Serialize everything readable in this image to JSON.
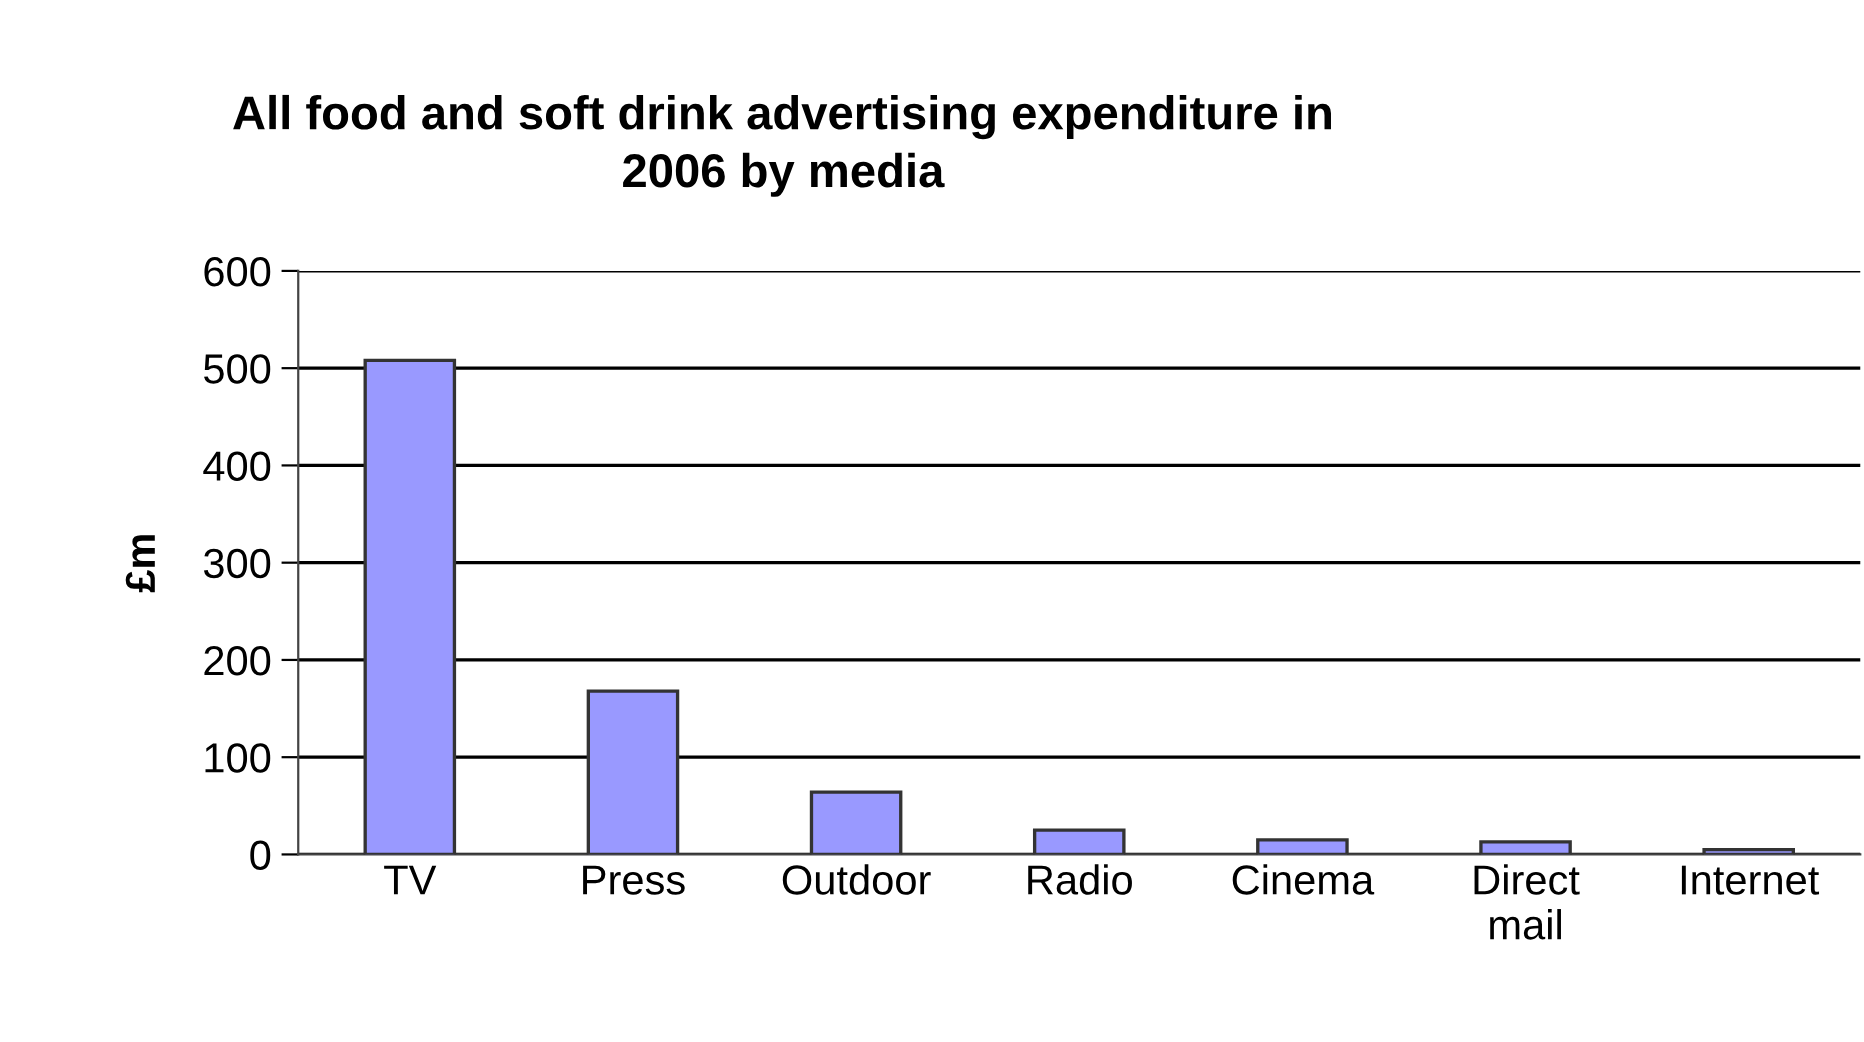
{
  "chart_data": {
    "type": "bar",
    "title": "All food and soft drink advertising expenditure in\n2006 by media",
    "ylabel": "£m",
    "categories": [
      "TV",
      "Press",
      "Outdoor",
      "Radio",
      "Cinema",
      "Direct\nmail",
      "Internet"
    ],
    "values": [
      508,
      168,
      64,
      25,
      15,
      13,
      5
    ],
    "color": "#9999ff",
    "ylim": [
      0,
      600
    ],
    "yticks": [
      0,
      100,
      200,
      300,
      400,
      500,
      600
    ],
    "grid": "y"
  }
}
